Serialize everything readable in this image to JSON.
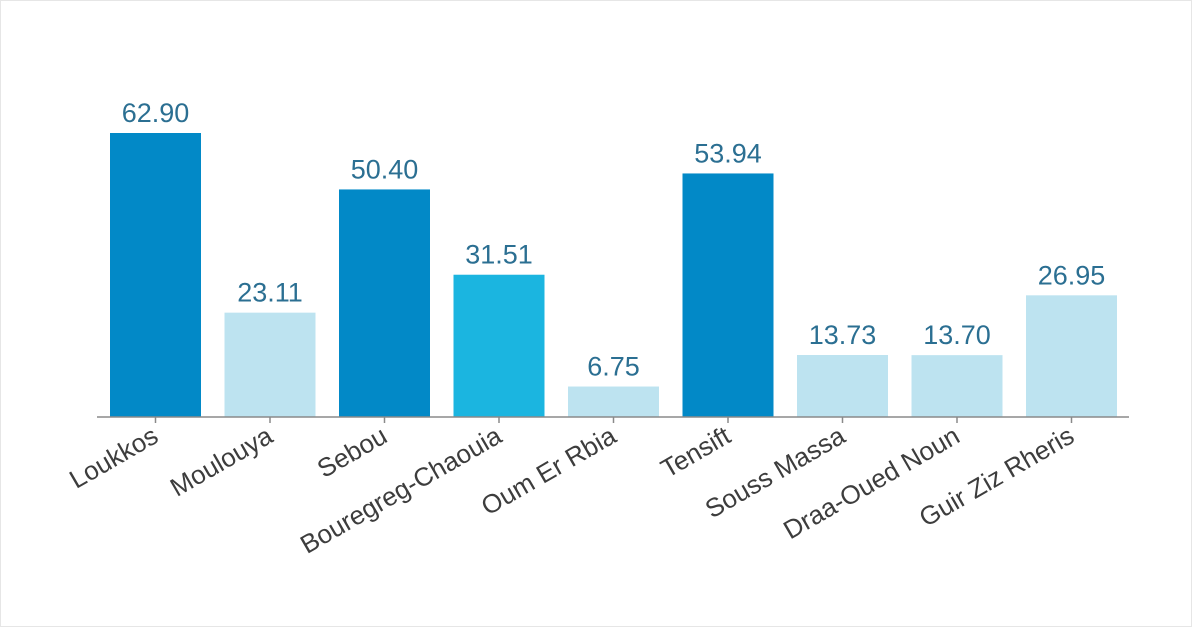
{
  "chart_data": {
    "type": "bar",
    "title": "",
    "xlabel": "",
    "ylabel": "",
    "ylim": [
      0,
      62.9
    ],
    "grid": false,
    "categories": [
      "Loukkos",
      "Moulouya",
      "Sebou",
      "Bouregreg-Chaouia",
      "Oum Er Rbia",
      "Tensift",
      "Souss Massa",
      "Draa-Oued Noun",
      "Guir Ziz Rheris"
    ],
    "values": [
      62.9,
      23.11,
      50.4,
      31.51,
      6.75,
      53.94,
      13.73,
      13.7,
      26.95
    ],
    "value_labels": [
      "62.90",
      "23.11",
      "50.40",
      "31.51",
      "6.75",
      "53.94",
      "13.73",
      "13.70",
      "26.95"
    ],
    "bar_colors": [
      "#0289c7",
      "#bde3f0",
      "#0289c7",
      "#1bb5e0",
      "#bde3f0",
      "#0289c7",
      "#bde3f0",
      "#bde3f0",
      "#bde3f0"
    ]
  }
}
